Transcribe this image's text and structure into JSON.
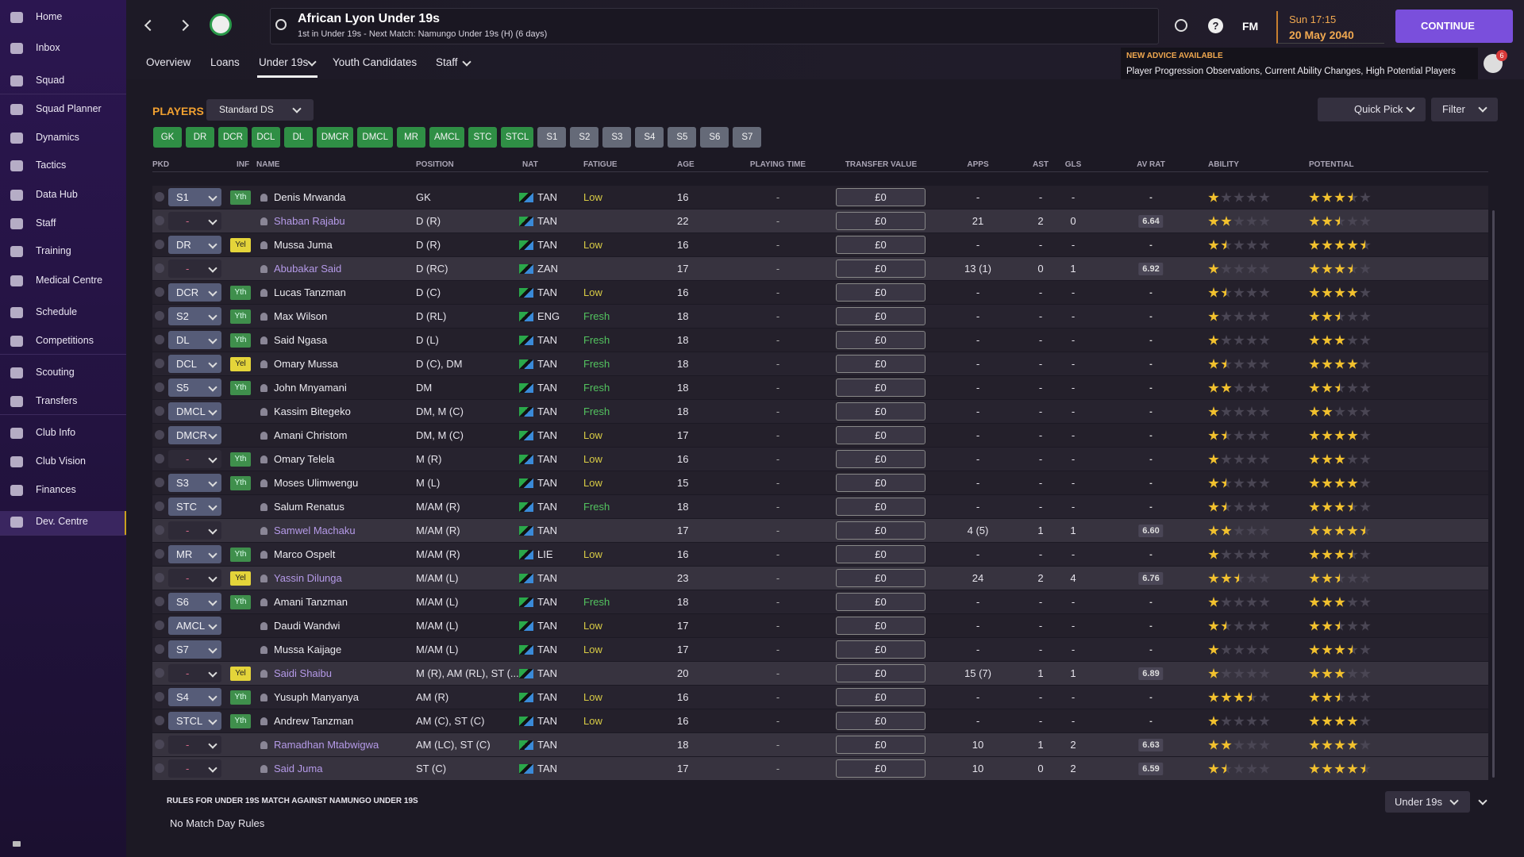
{
  "sidebar": [
    "Home",
    "Inbox",
    "Squad",
    "Squad Planner",
    "Dynamics",
    "Tactics",
    "Data Hub",
    "Staff",
    "Training",
    "Medical Centre",
    "Schedule",
    "Competitions",
    "Scouting",
    "Transfers",
    "Club Info",
    "Club Vision",
    "Finances",
    "Dev. Centre"
  ],
  "header": {
    "title": "African Lyon Under 19s",
    "subtitle": "1st in Under 19s - Next Match: Namungo Under 19s (H) (6 days)",
    "help": "?",
    "fm": "FM",
    "time": "Sun 17:15",
    "date": "20 May 2040",
    "continue": "CONTINUE",
    "tabs": [
      "Overview",
      "Loans",
      "Under 19s",
      "Youth Candidates",
      "Staff"
    ],
    "advice_title": "NEW ADVICE AVAILABLE",
    "advice": "Player Progression Observations, Current Ability Changes, High Potential Players",
    "advice_count": "6"
  },
  "toolbar": {
    "section": "PLAYERS",
    "view": "Standard DS",
    "quick_pick": "Quick Pick",
    "filter": "Filter",
    "position_chips": [
      "GK",
      "DR",
      "DCR",
      "DCL",
      "DL",
      "DMCR",
      "DMCL",
      "MR",
      "AMCL",
      "STC",
      "STCL"
    ],
    "squad_chips": [
      "S1",
      "S2",
      "S3",
      "S4",
      "S5",
      "S6",
      "S7"
    ]
  },
  "inf_colors": {
    "Yth": "#3f8f4c",
    "Yel": "#e4d43a"
  },
  "fatigue_colors": {
    "Low": "#d9cc45",
    "Fresh": "#53c35f"
  },
  "table": {
    "columns": [
      "PKD",
      "INF",
      "NAME",
      "POSITION",
      "NAT",
      "FATIGUE",
      "AGE",
      "PLAYING TIME",
      "TRANSFER VALUE",
      "APPS",
      "AST",
      "GLS",
      "AV RAT",
      "ABILITY",
      "POTENTIAL"
    ],
    "rows": [
      {
        "pkd": "S1",
        "inf": "Yth",
        "name": "Denis Mrwanda",
        "pos": "GK",
        "nat": "TAN",
        "fat": "Low",
        "age": "16",
        "pt": "-",
        "tv": "£0",
        "apps": "-",
        "ast": "-",
        "gls": "-",
        "avr": "-",
        "ab": 1,
        "pot": 3.5
      },
      {
        "pkd": "-",
        "name": "Shaban Rajabu",
        "pos": "D (R)",
        "nat": "TAN",
        "age": "22",
        "pt": "-",
        "tv": "£0",
        "apps": "21",
        "ast": "2",
        "gls": "0",
        "avr": "6.64",
        "ab": 2,
        "pot": 2.5,
        "highlight": true
      },
      {
        "pkd": "DR",
        "inf": "Yel",
        "name": "Mussa Juma",
        "pos": "D (R)",
        "nat": "TAN",
        "fat": "Low",
        "age": "16",
        "pt": "-",
        "tv": "£0",
        "apps": "-",
        "ast": "-",
        "gls": "-",
        "avr": "-",
        "ab": 1.5,
        "pot": 4.5
      },
      {
        "pkd": "-",
        "name": "Abubakar Said",
        "pos": "D (RC)",
        "nat": "ZAN",
        "age": "17",
        "pt": "-",
        "tv": "£0",
        "apps": "13 (1)",
        "ast": "0",
        "gls": "1",
        "avr": "6.92",
        "ab": 1,
        "pot": 3.5,
        "highlight": true
      },
      {
        "pkd": "DCR",
        "inf": "Yth",
        "name": "Lucas Tanzman",
        "pos": "D (C)",
        "nat": "TAN",
        "fat": "Low",
        "age": "16",
        "pt": "-",
        "tv": "£0",
        "apps": "-",
        "ast": "-",
        "gls": "-",
        "avr": "-",
        "ab": 1.5,
        "pot": 4
      },
      {
        "pkd": "S2",
        "inf": "Yth",
        "name": "Max Wilson",
        "pos": "D (RL)",
        "nat": "ENG",
        "fat": "Fresh",
        "age": "18",
        "pt": "-",
        "tv": "£0",
        "apps": "-",
        "ast": "-",
        "gls": "-",
        "avr": "-",
        "ab": 1,
        "pot": 2.5
      },
      {
        "pkd": "DL",
        "inf": "Yth",
        "name": "Said Ngasa",
        "pos": "D (L)",
        "nat": "TAN",
        "fat": "Fresh",
        "age": "18",
        "pt": "-",
        "tv": "£0",
        "apps": "-",
        "ast": "-",
        "gls": "-",
        "avr": "-",
        "ab": 1,
        "pot": 3
      },
      {
        "pkd": "DCL",
        "inf": "Yel",
        "name": "Omary Mussa",
        "pos": "D (C), DM",
        "nat": "TAN",
        "fat": "Fresh",
        "age": "18",
        "pt": "-",
        "tv": "£0",
        "apps": "-",
        "ast": "-",
        "gls": "-",
        "avr": "-",
        "ab": 1.5,
        "pot": 4
      },
      {
        "pkd": "S5",
        "inf": "Yth",
        "name": "John Mnyamani",
        "pos": "DM",
        "nat": "TAN",
        "fat": "Fresh",
        "age": "18",
        "pt": "-",
        "tv": "£0",
        "apps": "-",
        "ast": "-",
        "gls": "-",
        "avr": "-",
        "ab": 2,
        "pot": 2.5
      },
      {
        "pkd": "DMCL",
        "name": "Kassim Bitegeko",
        "pos": "DM, M (C)",
        "nat": "TAN",
        "fat": "Fresh",
        "age": "18",
        "pt": "-",
        "tv": "£0",
        "apps": "-",
        "ast": "-",
        "gls": "-",
        "avr": "-",
        "ab": 1,
        "pot": 2
      },
      {
        "pkd": "DMCR",
        "name": "Amani Christom",
        "pos": "DM, M (C)",
        "nat": "TAN",
        "fat": "Low",
        "age": "17",
        "pt": "-",
        "tv": "£0",
        "apps": "-",
        "ast": "-",
        "gls": "-",
        "avr": "-",
        "ab": 1.5,
        "pot": 4
      },
      {
        "pkd": "-",
        "inf": "Yth",
        "name": "Omary Telela",
        "pos": "M (R)",
        "nat": "TAN",
        "fat": "Low",
        "age": "16",
        "pt": "-",
        "tv": "£0",
        "apps": "-",
        "ast": "-",
        "gls": "-",
        "avr": "-",
        "ab": 1,
        "pot": 3
      },
      {
        "pkd": "S3",
        "inf": "Yth",
        "name": "Moses Ulimwengu",
        "pos": "M (L)",
        "nat": "TAN",
        "fat": "Low",
        "age": "15",
        "pt": "-",
        "tv": "£0",
        "apps": "-",
        "ast": "-",
        "gls": "-",
        "avr": "-",
        "ab": 1.5,
        "pot": 4
      },
      {
        "pkd": "STC",
        "name": "Salum Renatus",
        "pos": "M/AM (R)",
        "nat": "TAN",
        "fat": "Fresh",
        "age": "18",
        "pt": "-",
        "tv": "£0",
        "apps": "-",
        "ast": "-",
        "gls": "-",
        "avr": "-",
        "ab": 1.5,
        "pot": 3.5
      },
      {
        "pkd": "-",
        "name": "Samwel Machaku",
        "pos": "M/AM (R)",
        "nat": "TAN",
        "age": "17",
        "pt": "-",
        "tv": "£0",
        "apps": "4 (5)",
        "ast": "1",
        "gls": "1",
        "avr": "6.60",
        "ab": 2,
        "pot": 4.5,
        "highlight": true
      },
      {
        "pkd": "MR",
        "inf": "Yth",
        "name": "Marco Ospelt",
        "pos": "M/AM (R)",
        "nat": "LIE",
        "fat": "Low",
        "age": "16",
        "pt": "-",
        "tv": "£0",
        "apps": "-",
        "ast": "-",
        "gls": "-",
        "avr": "-",
        "ab": 1,
        "pot": 3.5
      },
      {
        "pkd": "-",
        "inf": "Yel",
        "name": "Yassin Dilunga",
        "pos": "M/AM (L)",
        "nat": "TAN",
        "age": "23",
        "pt": "-",
        "tv": "£0",
        "apps": "24",
        "ast": "2",
        "gls": "4",
        "avr": "6.76",
        "ab": 2.5,
        "pot": 2.5,
        "highlight": true
      },
      {
        "pkd": "S6",
        "inf": "Yth",
        "name": "Amani Tanzman",
        "pos": "M/AM (L)",
        "nat": "TAN",
        "fat": "Fresh",
        "age": "18",
        "pt": "-",
        "tv": "£0",
        "apps": "-",
        "ast": "-",
        "gls": "-",
        "avr": "-",
        "ab": 1,
        "pot": 3
      },
      {
        "pkd": "AMCL",
        "name": "Daudi Wandwi",
        "pos": "M/AM (L)",
        "nat": "TAN",
        "fat": "Low",
        "age": "17",
        "pt": "-",
        "tv": "£0",
        "apps": "-",
        "ast": "-",
        "gls": "-",
        "avr": "-",
        "ab": 1.5,
        "pot": 2.5
      },
      {
        "pkd": "S7",
        "name": "Mussa Kaijage",
        "pos": "M/AM (L)",
        "nat": "TAN",
        "fat": "Low",
        "age": "17",
        "pt": "-",
        "tv": "£0",
        "apps": "-",
        "ast": "-",
        "gls": "-",
        "avr": "-",
        "ab": 1,
        "pot": 3.5
      },
      {
        "pkd": "-",
        "inf": "Yel",
        "name": "Saidi Shaibu",
        "pos": "M (R), AM (RL), ST (...",
        "nat": "TAN",
        "age": "20",
        "pt": "-",
        "tv": "£0",
        "apps": "15 (7)",
        "ast": "1",
        "gls": "1",
        "avr": "6.89",
        "ab": 1,
        "pot": 3,
        "highlight": true
      },
      {
        "pkd": "S4",
        "inf": "Yth",
        "name": "Yusuph Manyanya",
        "pos": "AM (R)",
        "nat": "TAN",
        "fat": "Low",
        "age": "16",
        "pt": "-",
        "tv": "£0",
        "apps": "-",
        "ast": "-",
        "gls": "-",
        "avr": "-",
        "ab": 3.5,
        "pot": 2.5
      },
      {
        "pkd": "STCL",
        "inf": "Yth",
        "name": "Andrew Tanzman",
        "pos": "AM (C), ST (C)",
        "nat": "TAN",
        "fat": "Low",
        "age": "16",
        "pt": "-",
        "tv": "£0",
        "apps": "-",
        "ast": "-",
        "gls": "-",
        "avr": "-",
        "ab": 1,
        "pot": 4
      },
      {
        "pkd": "-",
        "name": "Ramadhan Mtabwigwa",
        "pos": "AM (LC), ST (C)",
        "nat": "TAN",
        "age": "18",
        "pt": "-",
        "tv": "£0",
        "apps": "10",
        "ast": "1",
        "gls": "2",
        "avr": "6.63",
        "ab": 2,
        "pot": 4,
        "highlight": true
      },
      {
        "pkd": "-",
        "name": "Said Juma",
        "pos": "ST (C)",
        "nat": "TAN",
        "age": "17",
        "pt": "-",
        "tv": "£0",
        "apps": "10",
        "ast": "0",
        "gls": "2",
        "avr": "6.59",
        "ab": 1.5,
        "pot": 4.5,
        "highlight": true
      }
    ]
  },
  "footer": {
    "rules_title": "RULES FOR UNDER 19S MATCH AGAINST NAMUNGO UNDER 19S",
    "rules": "No Match Day Rules",
    "squad": "Under 19s"
  }
}
